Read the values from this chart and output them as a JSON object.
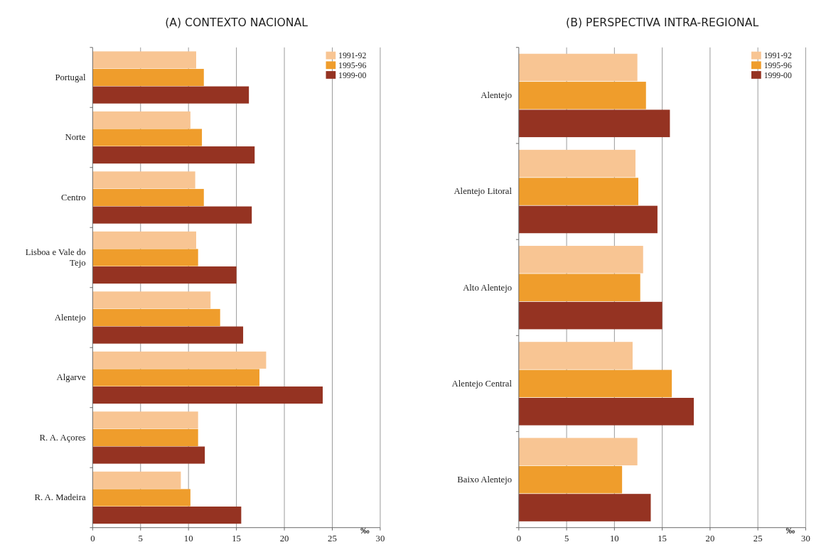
{
  "chart_data": [
    {
      "type": "bar",
      "orientation": "horizontal",
      "title": "(A) CONTEXTO NACIONAL",
      "xlabel": "‰",
      "categories": [
        "Portugal",
        "Norte",
        "Centro",
        "Lisboa e Vale do Tejo",
        "Alentejo",
        "Algarve",
        "R. A. Açores",
        "R. A. Madeira"
      ],
      "series": [
        {
          "name": "1991-92",
          "color": "#f8c593",
          "values": [
            10.8,
            10.2,
            10.7,
            10.8,
            12.3,
            18.1,
            11.0,
            9.2
          ]
        },
        {
          "name": "1995-96",
          "color": "#ef9d2c",
          "values": [
            11.6,
            11.4,
            11.6,
            11.0,
            13.3,
            17.4,
            11.0,
            10.2
          ]
        },
        {
          "name": "1999-00",
          "color": "#953322",
          "values": [
            16.3,
            16.9,
            16.6,
            15.0,
            15.7,
            24.0,
            11.7,
            15.5
          ]
        }
      ],
      "xlim": [
        0,
        30
      ],
      "xticks": [
        0,
        5,
        10,
        15,
        20,
        25,
        30
      ],
      "grid": "x",
      "legend": "top right"
    },
    {
      "type": "bar",
      "orientation": "horizontal",
      "title": "(B) PERSPECTIVA INTRA-REGIONAL",
      "xlabel": "‰",
      "categories": [
        "Alentejo",
        "Alentejo Litoral",
        "Alto Alentejo",
        "Alentejo Central",
        "Baixo Alentejo"
      ],
      "series": [
        {
          "name": "1991-92",
          "color": "#f8c593",
          "values": [
            12.4,
            12.2,
            13.0,
            11.9,
            12.4
          ]
        },
        {
          "name": "1995-96",
          "color": "#ef9d2c",
          "values": [
            13.3,
            12.5,
            12.7,
            16.0,
            10.8
          ]
        },
        {
          "name": "1999-00",
          "color": "#953322",
          "values": [
            15.8,
            14.5,
            15.0,
            18.3,
            13.8
          ]
        }
      ],
      "xlim": [
        0,
        30
      ],
      "xticks": [
        0,
        5,
        10,
        15,
        20,
        25,
        30
      ],
      "grid": "x",
      "legend": "top right"
    }
  ]
}
